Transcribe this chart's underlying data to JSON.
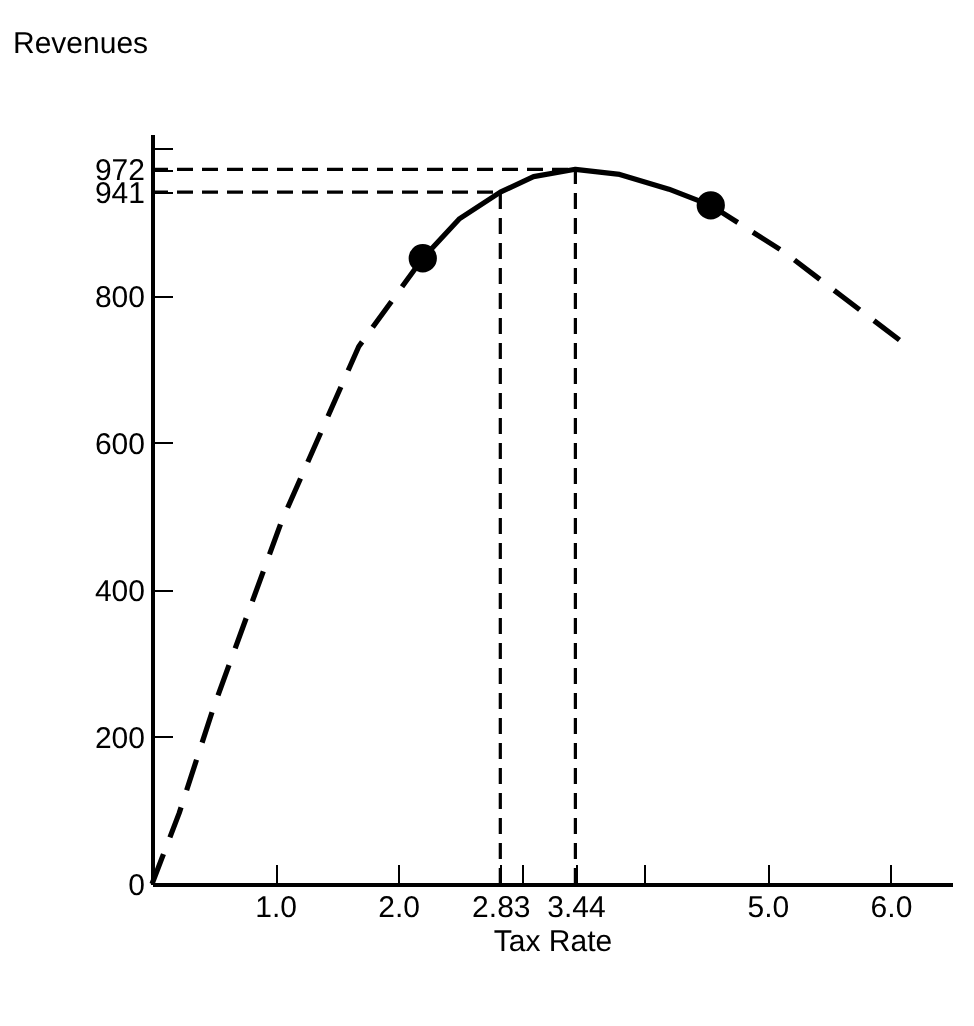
{
  "chart_data": {
    "type": "line",
    "xlabel": "Tax Rate",
    "ylabel": "Revenues",
    "xlim": [
      0,
      6.5
    ],
    "ylim": [
      0,
      1020
    ],
    "xticks": [
      {
        "value": 1,
        "label": "1.0"
      },
      {
        "value": 2,
        "label": "2.0"
      },
      2.83,
      {
        "value": 3,
        "label": null
      },
      3.44,
      {
        "value": 4,
        "label": null
      },
      {
        "value": 5,
        "label": "5.0"
      },
      {
        "value": 6,
        "label": "6.0"
      }
    ],
    "yticks": [
      0,
      200,
      400,
      600,
      800,
      941,
      972,
      {
        "value": 1000,
        "label": null
      }
    ],
    "grid": false,
    "series": [
      {
        "line_style": "dashed",
        "color": "#000000",
        "x": [
          0,
          0.22,
          0.5,
          1.05,
          1.68,
          2.2
        ],
        "values": [
          0,
          96,
          240,
          492,
          731,
          851
        ]
      },
      {
        "line_style": "solid",
        "color": "#000000",
        "x": [
          2.2,
          2.5,
          2.83,
          3.1,
          3.44,
          3.8,
          4.2,
          4.54
        ],
        "values": [
          851,
          905,
          941,
          962,
          972,
          965,
          945,
          923
        ]
      },
      {
        "line_style": "dashed",
        "color": "#000000",
        "x": [
          4.54,
          5.14,
          5.6,
          6.08
        ],
        "values": [
          923,
          859,
          800,
          739
        ]
      },
      {
        "type": "scatter",
        "marker": "circle",
        "color": "#000000",
        "x": [
          2.2,
          4.54
        ],
        "values": [
          851,
          923
        ]
      }
    ],
    "ref_lines": [
      {
        "axis": "x",
        "value": 2.83,
        "line_style": "dashed"
      },
      {
        "axis": "x",
        "value": 3.44,
        "line_style": "dashed"
      },
      {
        "axis": "y",
        "value": 941,
        "line_style": "dashed"
      },
      {
        "axis": "y",
        "value": 972,
        "line_style": "dashed"
      }
    ]
  }
}
